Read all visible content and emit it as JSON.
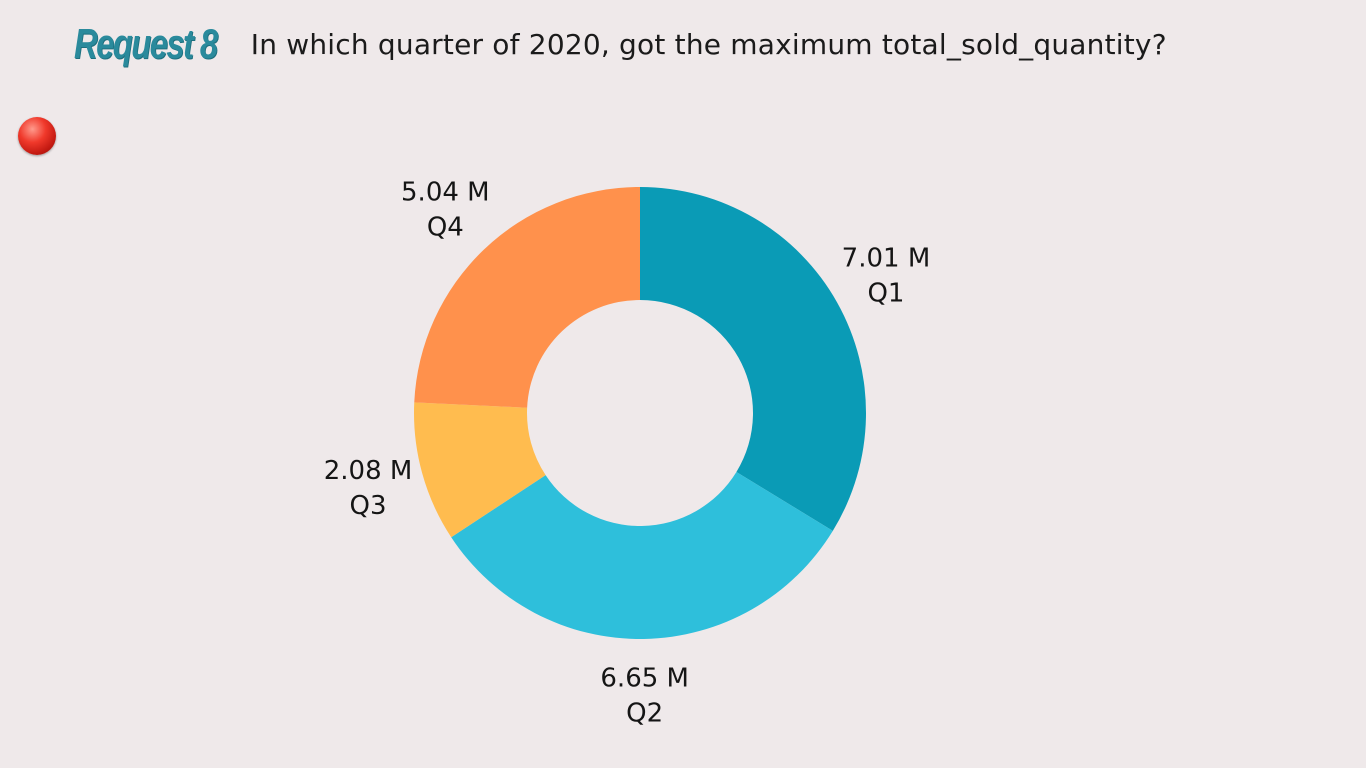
{
  "header": {
    "badge": "Request 8",
    "question": "In which quarter of 2020, got the maximum total_sold_quantity?"
  },
  "colors": {
    "background": "#efe9ea",
    "badge": "#2a8a9c",
    "bullet": "#e0251b"
  },
  "icons": {
    "bullet": "red-circle-icon"
  },
  "chart_data": {
    "type": "pie",
    "style": "donut",
    "categories": [
      "Q1",
      "Q2",
      "Q3",
      "Q4"
    ],
    "values": [
      7.01,
      6.65,
      2.08,
      5.04
    ],
    "value_labels": [
      "7.01 M",
      "6.65 M",
      "2.08 M",
      "5.04 M"
    ],
    "unit": "M",
    "colors": [
      "#0a9bb6",
      "#2ebfdb",
      "#ffbc4f",
      "#ff914c"
    ],
    "legend": "none",
    "labels_position": "outside"
  }
}
